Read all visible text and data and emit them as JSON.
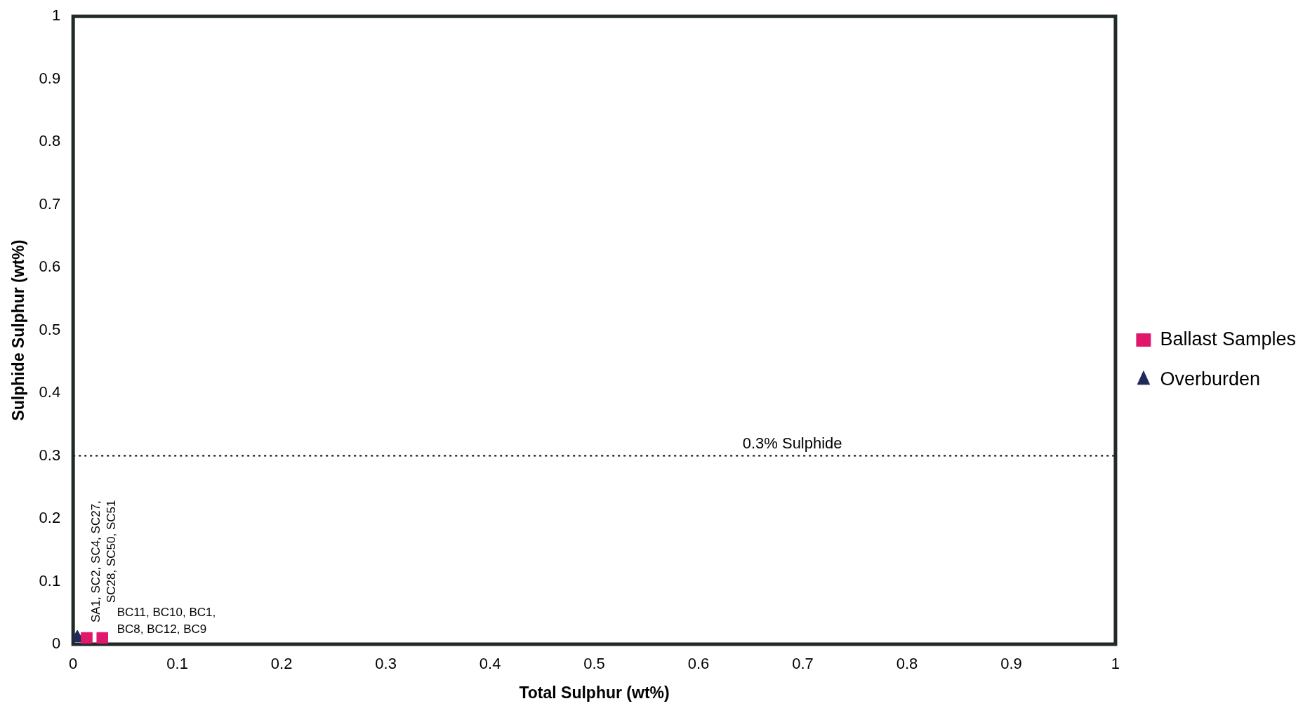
{
  "chart_data": {
    "type": "scatter",
    "xlabel": "Total Sulphur (wt%)",
    "ylabel": "Sulphide Sulphur (wt%)",
    "xlim": [
      0,
      1
    ],
    "ylim": [
      0,
      1
    ],
    "xticks": [
      0,
      0.1,
      0.2,
      0.3,
      0.4,
      0.5,
      0.6,
      0.7,
      0.8,
      0.9,
      1
    ],
    "yticks": [
      0,
      0.1,
      0.2,
      0.3,
      0.4,
      0.5,
      0.6,
      0.7,
      0.8,
      0.9,
      1
    ],
    "grid": false,
    "legend": "right",
    "series": [
      {
        "name": "Ballast Samples",
        "color": "#e0186c",
        "marker": "square",
        "x": [
          0.013,
          0.028
        ],
        "values": [
          0.01,
          0.01
        ]
      },
      {
        "name": "Overburden",
        "color": "#1f2a5a",
        "marker": "triangle",
        "x": [
          0.004
        ],
        "values": [
          0.01
        ]
      }
    ],
    "ref_lines": [
      {
        "axis": "y",
        "value": 0.3,
        "label": "0.3% Sulphide",
        "color": "#000000",
        "line_style": "dotted"
      }
    ],
    "annotations": [
      {
        "text": "SA1, SC2, SC4, SC27, SC28, SC50, SC51",
        "x": 0.005,
        "y": 0.01
      },
      {
        "text": "BC11, BC10, BC1, BC8, BC12, BC9",
        "x": 0.03,
        "y": 0.01
      }
    ]
  }
}
